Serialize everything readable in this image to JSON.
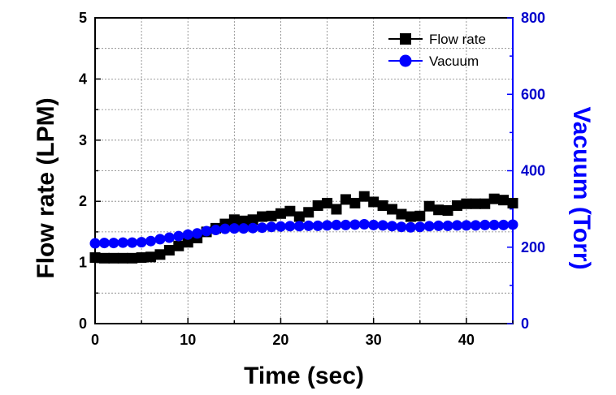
{
  "chart_data": {
    "type": "line",
    "title": "",
    "xlabel": "Time (sec)",
    "ylabel_left": "Flow rate (LPM)",
    "ylabel_right": "Vacuum (Torr)",
    "xlim": [
      0,
      45
    ],
    "ylim_left": [
      0,
      5
    ],
    "ylim_right": [
      0,
      800
    ],
    "x_ticks": [
      "0",
      "10",
      "20",
      "30",
      "40"
    ],
    "y_left_ticks": [
      "0",
      "1",
      "2",
      "3",
      "4",
      "5"
    ],
    "y_right_ticks": [
      "0",
      "200",
      "400",
      "600",
      "800"
    ],
    "grid": true,
    "legend_position": "top-right",
    "colors": {
      "flow": "#000000",
      "vacuum": "#0000ff",
      "right_axis": "#0000cc"
    },
    "series": [
      {
        "name": "Flow rate",
        "axis": "left",
        "marker": "square",
        "x": [
          0,
          1,
          2,
          3,
          4,
          5,
          6,
          7,
          8,
          9,
          10,
          11,
          12,
          13,
          14,
          15,
          16,
          17,
          18,
          19,
          20,
          21,
          22,
          23,
          24,
          25,
          26,
          27,
          28,
          29,
          30,
          31,
          32,
          33,
          34,
          35,
          36,
          37,
          38,
          39,
          40,
          41,
          42,
          43,
          44,
          45
        ],
        "values": [
          1.08,
          1.07,
          1.07,
          1.07,
          1.07,
          1.08,
          1.09,
          1.13,
          1.2,
          1.27,
          1.33,
          1.4,
          1.5,
          1.56,
          1.63,
          1.7,
          1.68,
          1.7,
          1.75,
          1.76,
          1.8,
          1.84,
          1.75,
          1.82,
          1.93,
          1.97,
          1.87,
          2.03,
          1.97,
          2.08,
          1.99,
          1.93,
          1.87,
          1.79,
          1.75,
          1.76,
          1.92,
          1.86,
          1.85,
          1.93,
          1.96,
          1.96,
          1.96,
          2.04,
          2.02,
          1.97
        ]
      },
      {
        "name": "Vacuum",
        "axis": "right",
        "marker": "circle",
        "x": [
          0,
          1,
          2,
          3,
          4,
          5,
          6,
          7,
          8,
          9,
          10,
          11,
          12,
          13,
          14,
          15,
          16,
          17,
          18,
          19,
          20,
          21,
          22,
          23,
          24,
          25,
          26,
          27,
          28,
          29,
          30,
          31,
          32,
          33,
          34,
          35,
          36,
          37,
          38,
          39,
          40,
          41,
          42,
          43,
          44,
          45
        ],
        "values": [
          210,
          211,
          211,
          212,
          212,
          213,
          216,
          221,
          225,
          229,
          233,
          236,
          242,
          245,
          248,
          249,
          249,
          250,
          251,
          253,
          254,
          255,
          255,
          256,
          256,
          257,
          258,
          258,
          259,
          260,
          258,
          257,
          255,
          253,
          252,
          253,
          255,
          256,
          256,
          257,
          257,
          257,
          258,
          258,
          258,
          259
        ]
      }
    ]
  }
}
